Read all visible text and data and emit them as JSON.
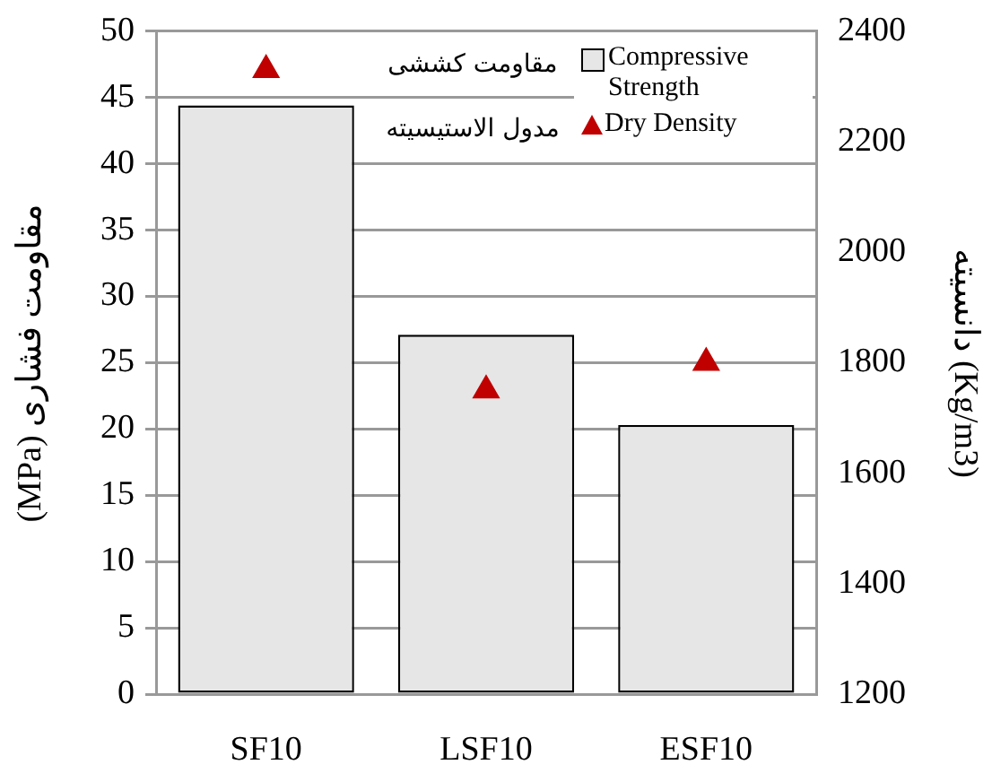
{
  "chart_data": {
    "type": "bar",
    "categories": [
      "SF10",
      "LSF10",
      "ESF10"
    ],
    "ylabel": "مقاومت فشاری (MPa)",
    "y2label": "دانسیته (Kg/m3)",
    "annotations": [
      "مقاومت کششی",
      "مدول الاستیسیته"
    ],
    "series": [
      {
        "name": "Compressive Strength",
        "color": "#e6e6e6",
        "values": [
          44.4,
          27.1,
          20.3
        ]
      },
      {
        "name": "Dry Density",
        "type": "scatter",
        "axis": "y2",
        "color": "#c00000",
        "x": [
          "SF10",
          "LSF10",
          "ESF10"
        ],
        "values": [
          2330,
          1750,
          1800
        ]
      }
    ],
    "ylim": [
      0,
      50
    ],
    "yticks": [
      0,
      5,
      10,
      15,
      20,
      25,
      30,
      35,
      40,
      45,
      50
    ],
    "y2lim": [
      1200,
      2400
    ],
    "y2ticks": [
      1200,
      1400,
      1600,
      1800,
      2000,
      2200,
      2400
    ],
    "grid": "y",
    "legend": "top right",
    "marker": "triangle"
  }
}
